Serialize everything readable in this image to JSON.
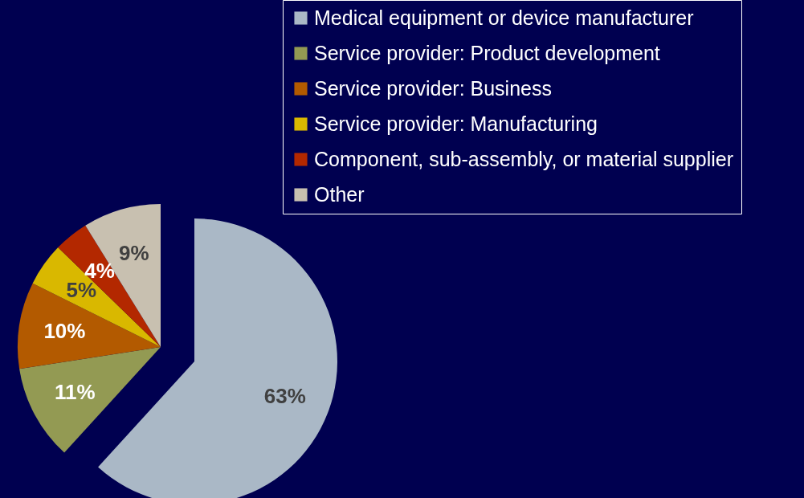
{
  "chart_data": {
    "type": "pie",
    "categories": [
      "Medical equipment or device manufacturer",
      "Service provider: Product development",
      "Service provider: Business",
      "Service provider: Manufacturing",
      "Component, sub-assembly, or material supplier",
      "Other"
    ],
    "values": [
      63,
      11,
      10,
      5,
      4,
      9
    ],
    "colors": [
      "#aab8c6",
      "#939a53",
      "#b35a00",
      "#d9b800",
      "#b32800",
      "#c8c0b0"
    ],
    "value_labels": [
      "63%",
      "11%",
      "10%",
      "5%",
      "4%",
      "9%"
    ],
    "legend": "top right"
  }
}
